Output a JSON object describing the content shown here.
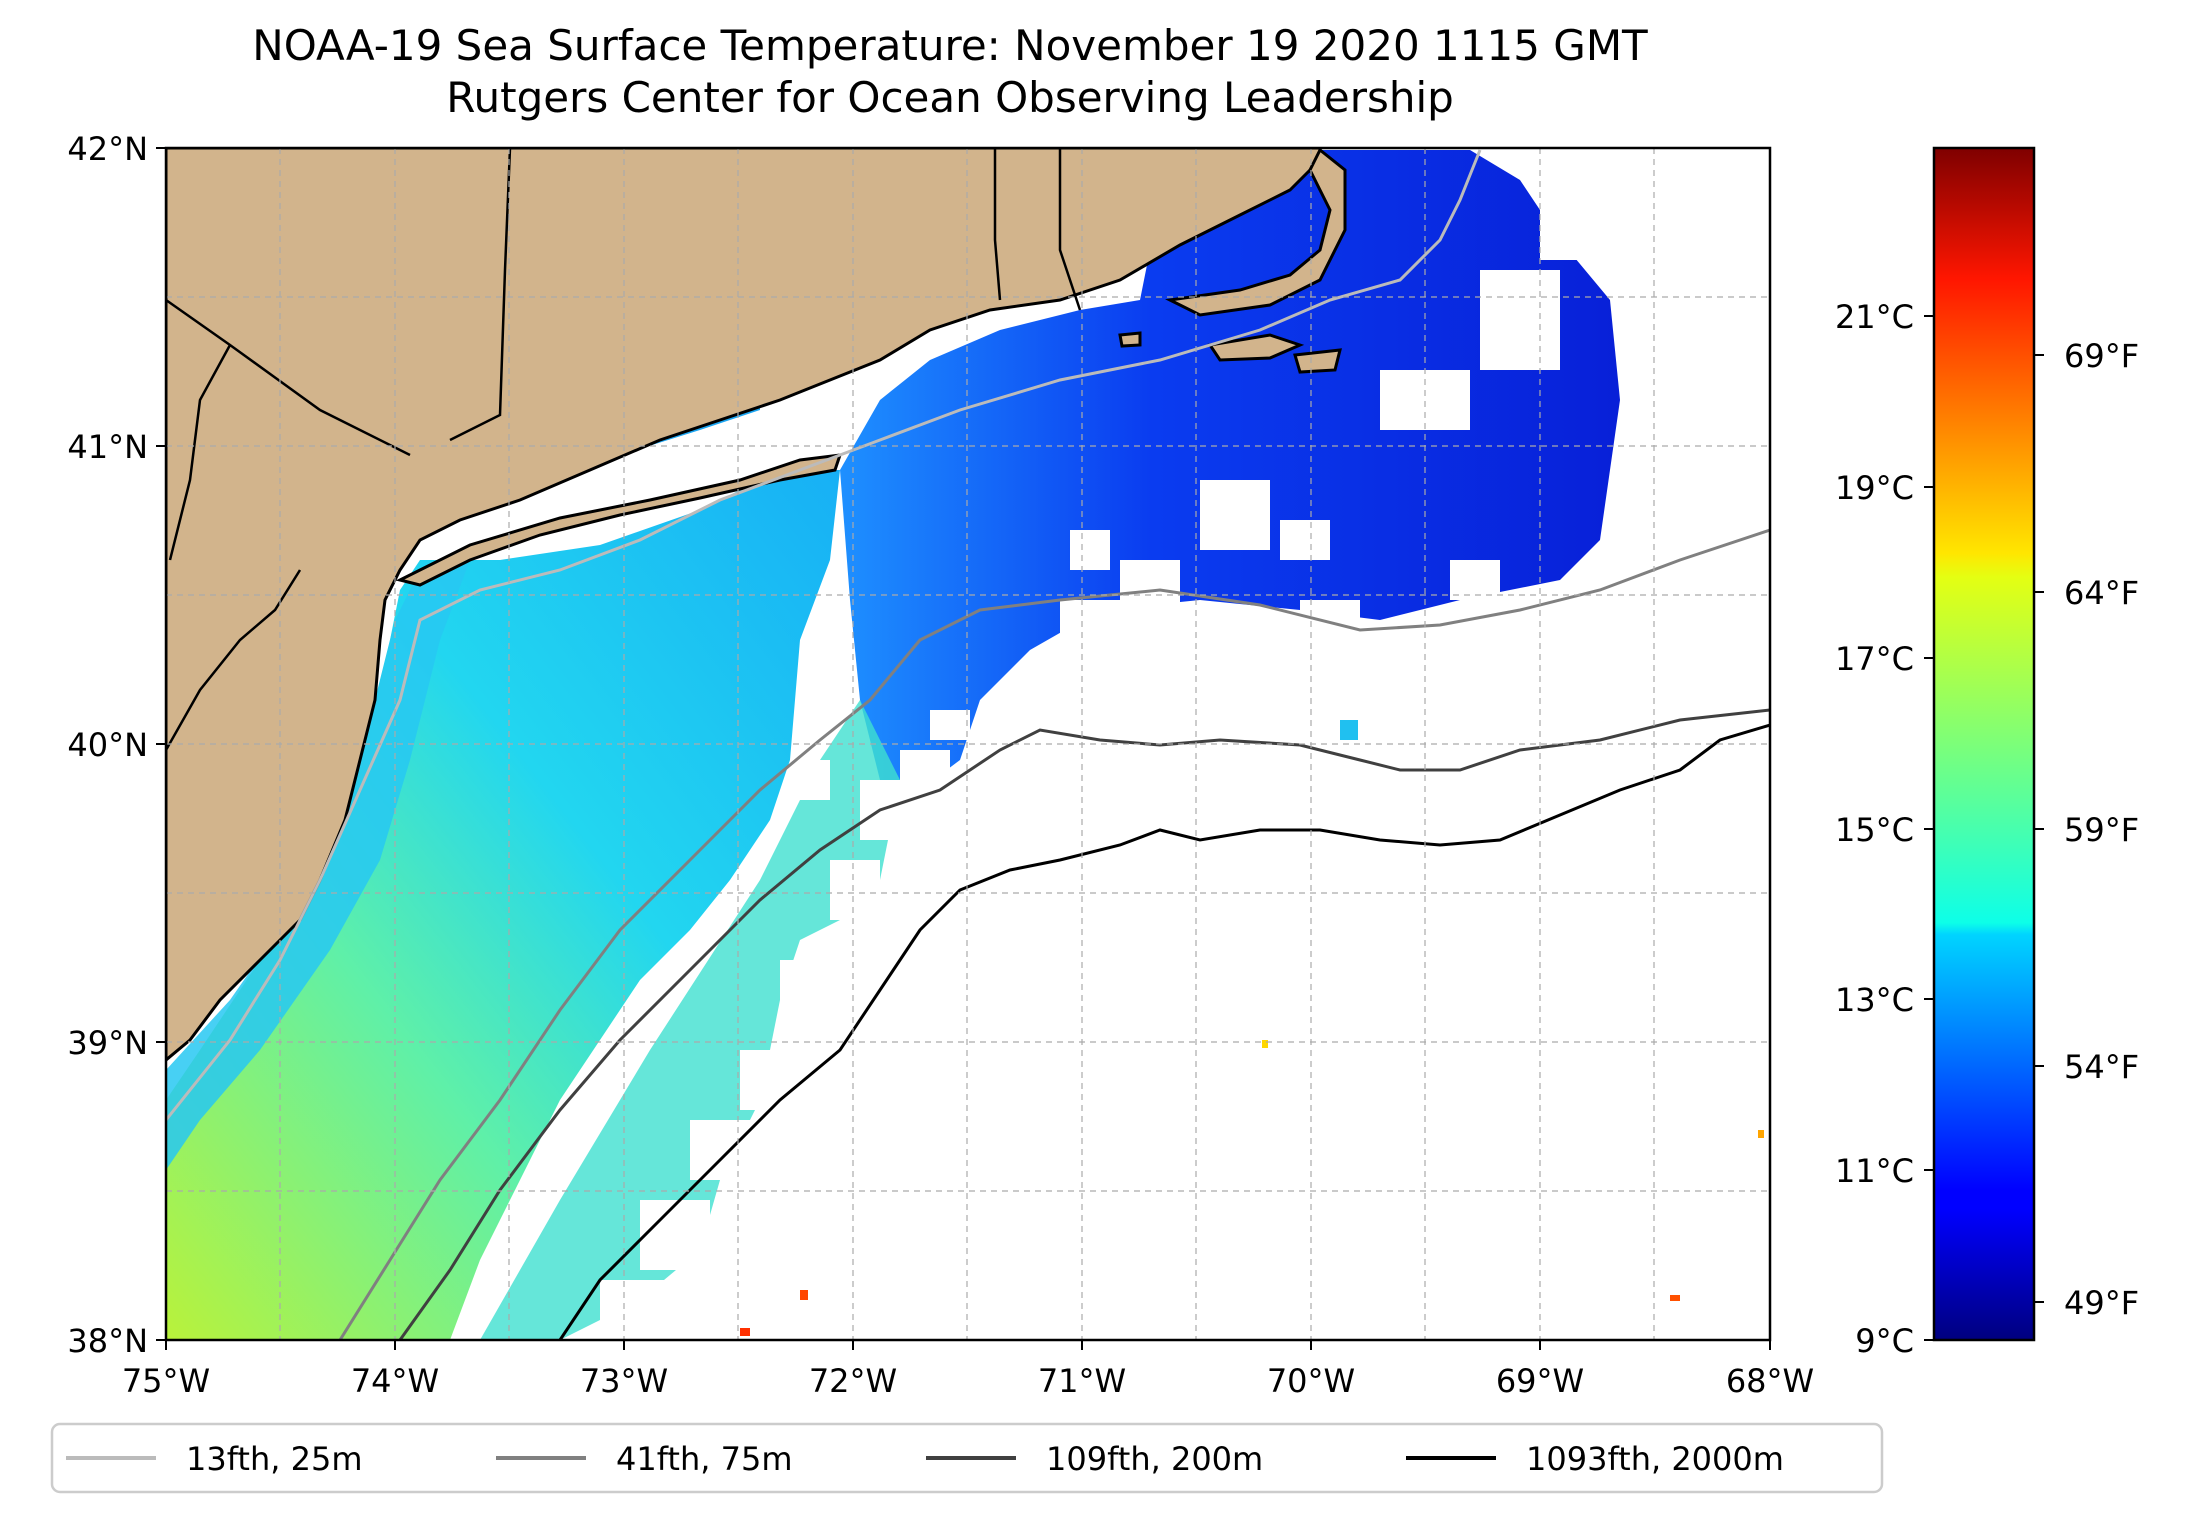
{
  "title": {
    "line1": "NOAA-19 Sea Surface Temperature: November 19 2020 1115 GMT",
    "line2": "Rutgers Center for Ocean Observing Leadership"
  },
  "map": {
    "extent": {
      "lon_min": -75,
      "lon_max": -68,
      "lat_min": 38,
      "lat_max": 42
    },
    "lat_ticks": [
      "42°N",
      "41°N",
      "40°N",
      "39°N",
      "38°N"
    ],
    "lon_ticks": [
      "75°W",
      "74°W",
      "73°W",
      "72°W",
      "71°W",
      "70°W",
      "69°W",
      "68°W"
    ],
    "grid": true,
    "land_color": "#d2b48c",
    "no_data_color": "#ffffff"
  },
  "colorbar": {
    "colormap": "jet",
    "celsius_ticks": [
      "21°C",
      "19°C",
      "17°C",
      "15°C",
      "13°C",
      "11°C",
      "9°C"
    ],
    "fahrenheit_ticks": [
      "69°F",
      "64°F",
      "59°F",
      "54°F",
      "49°F"
    ]
  },
  "legend": {
    "items": [
      {
        "label": "13fth, 25m",
        "color": "#bbbbbb"
      },
      {
        "label": "41fth, 75m",
        "color": "#808080"
      },
      {
        "label": "109fth, 200m",
        "color": "#404040"
      },
      {
        "label": "1093fth, 2000m",
        "color": "#000000"
      }
    ]
  }
}
